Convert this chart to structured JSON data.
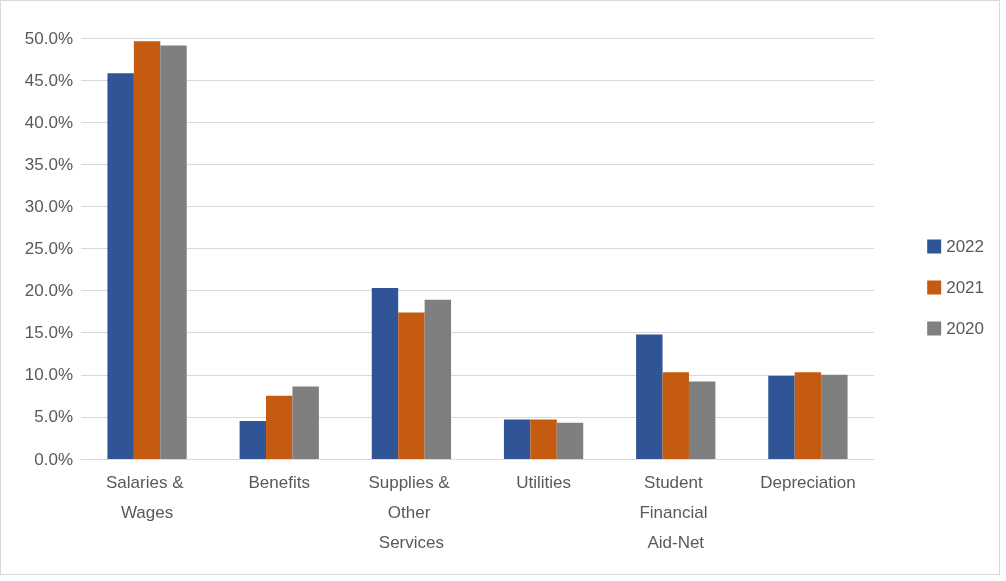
{
  "chart_data": {
    "type": "bar",
    "categories": [
      "Salaries & Wages",
      "Benefits",
      "Supplies & Other Services",
      "Utilities",
      "Student Financial Aid-Net",
      "Depreciation"
    ],
    "series": [
      {
        "name": "2022",
        "color": "#2f5597",
        "values": [
          45.8,
          4.5,
          20.3,
          4.7,
          14.8,
          9.9
        ]
      },
      {
        "name": "2021",
        "color": "#c55a11",
        "values": [
          49.6,
          7.5,
          17.4,
          4.7,
          10.3,
          10.3
        ]
      },
      {
        "name": "2020",
        "color": "#7f7f7f",
        "values": [
          49.1,
          8.6,
          18.9,
          4.3,
          9.2,
          10.0
        ]
      }
    ],
    "ylim": [
      0,
      50
    ],
    "yticks": [
      {
        "value": 0,
        "label": "0.0%"
      },
      {
        "value": 5,
        "label": "5.0%"
      },
      {
        "value": 10,
        "label": "10.0%"
      },
      {
        "value": 15,
        "label": "15.0%"
      },
      {
        "value": 20,
        "label": "20.0%"
      },
      {
        "value": 25,
        "label": "25.0%"
      },
      {
        "value": 30,
        "label": "30.0%"
      },
      {
        "value": 35,
        "label": "35.0%"
      },
      {
        "value": 40,
        "label": "40.0%"
      },
      {
        "value": 45,
        "label": "45.0%"
      },
      {
        "value": 50,
        "label": "50.0%"
      }
    ],
    "grid": "y",
    "legend": "right"
  }
}
